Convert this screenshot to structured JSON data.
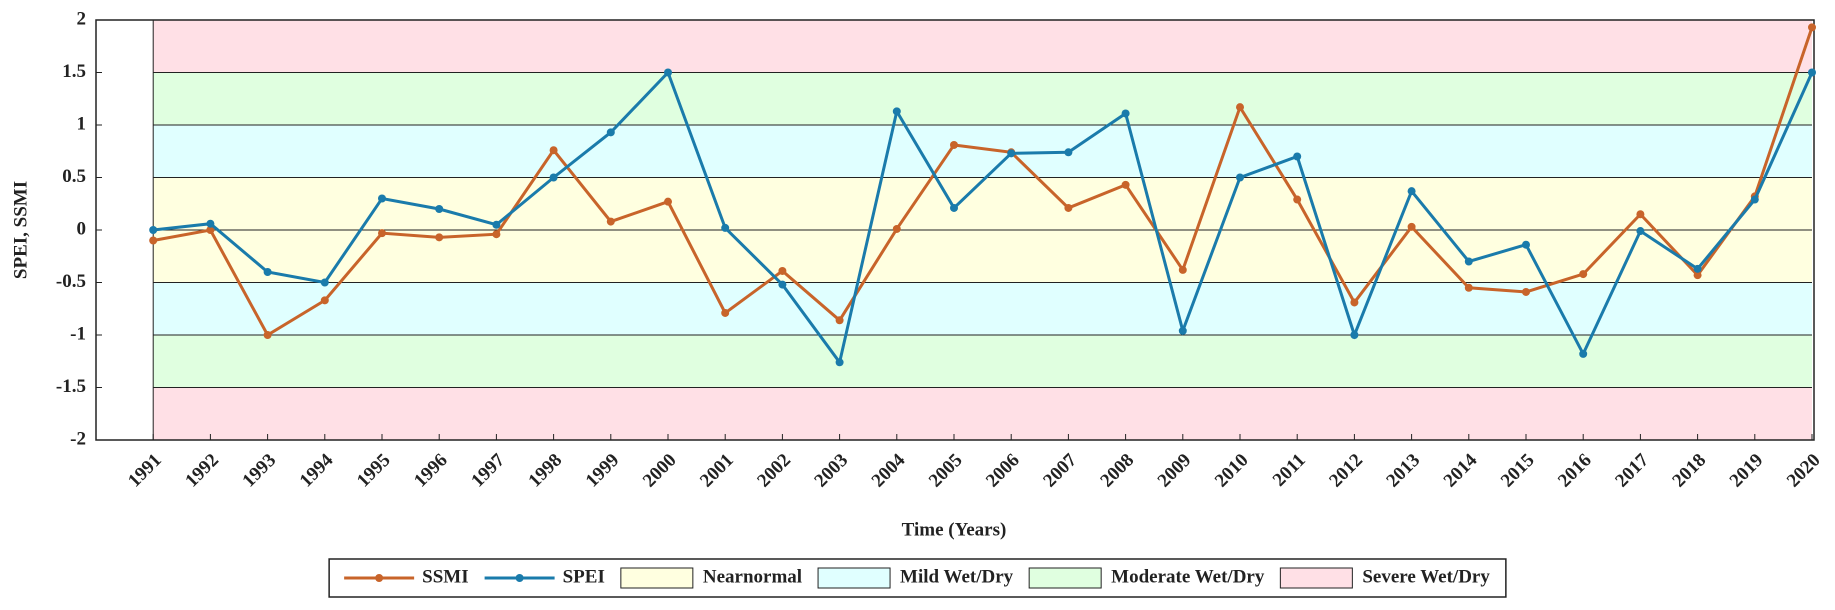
{
  "chart_data": {
    "type": "line",
    "y_label": "SPEI, SSMI",
    "x_label": "Time (Years)",
    "x": [
      1991,
      1992,
      1993,
      1994,
      1995,
      1996,
      1997,
      1998,
      1999,
      2000,
      2001,
      2002,
      2003,
      2004,
      2005,
      2006,
      2007,
      2008,
      2009,
      2010,
      2011,
      2012,
      2013,
      2014,
      2015,
      2016,
      2017,
      2018,
      2019,
      2020
    ],
    "xlim": [
      1990,
      2020
    ],
    "ylim": [
      -2,
      2
    ],
    "yticks": [
      2,
      1.5,
      1,
      0.5,
      0,
      -0.5,
      -1,
      -1.5,
      -2
    ],
    "grid": true,
    "series": [
      {
        "name": "SSMI",
        "color": "#c8642a",
        "values": [
          -0.1,
          0,
          -1,
          -0.67,
          -0.03,
          -0.07,
          -0.04,
          0.76,
          0.08,
          0.27,
          -0.79,
          -0.39,
          -0.86,
          0.01,
          0.81,
          0.74,
          0.21,
          0.43,
          -0.38,
          1.17,
          0.29,
          -0.69,
          0.03,
          -0.55,
          -0.59,
          -0.42,
          0.15,
          -0.43,
          0.32,
          1.93
        ]
      },
      {
        "name": "SPEI",
        "color": "#1a7bab",
        "values": [
          0,
          0.06,
          -0.4,
          -0.5,
          0.3,
          0.2,
          0.05,
          0.5,
          0.93,
          1.5,
          0.02,
          -0.52,
          -1.26,
          1.13,
          0.21,
          0.73,
          0.74,
          1.11,
          -0.96,
          0.5,
          0.7,
          -1.0,
          0.37,
          -0.3,
          -0.14,
          -1.18,
          -0.01,
          -0.37,
          0.29,
          1.5
        ]
      }
    ],
    "bands": [
      {
        "name": "Nearnormal",
        "color": "#ffffe0",
        "ranges": [
          [
            -0.5,
            0.5
          ]
        ]
      },
      {
        "name": "Mild Wet/Dry",
        "color": "#e0ffff",
        "ranges": [
          [
            0.5,
            1
          ],
          [
            -1,
            -0.5
          ]
        ]
      },
      {
        "name": "Moderate Wet/Dry",
        "color": "#e0ffe0",
        "ranges": [
          [
            1,
            1.5
          ],
          [
            -1.5,
            -1
          ]
        ]
      },
      {
        "name": "Severe Wet/Dry",
        "color": "#ffe0e6",
        "ranges": [
          [
            1.5,
            2
          ],
          [
            -2,
            -1.5
          ]
        ]
      }
    ]
  }
}
